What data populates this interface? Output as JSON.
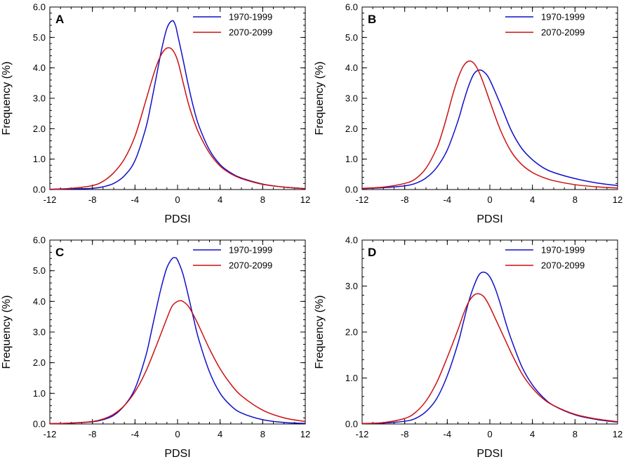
{
  "chart_data": [
    {
      "type": "line",
      "panel": "A",
      "xlabel": "PDSI",
      "ylabel": "Frequency (%)",
      "xlim": [
        -12,
        12
      ],
      "ylim": [
        0,
        6
      ],
      "xticks": [
        -12,
        -8,
        -4,
        0,
        4,
        8,
        12
      ],
      "yticks": [
        0,
        1,
        2,
        3,
        4,
        5,
        6
      ],
      "xtick_labels": [
        "-12",
        "-8",
        "-4",
        "0",
        "4",
        "8",
        "12"
      ],
      "ytick_labels": [
        "0.0",
        "1.0",
        "2.0",
        "3.0",
        "4.0",
        "5.0",
        "6.0"
      ],
      "legend_position": "top-right",
      "series": [
        {
          "name": "1970-1999",
          "color": "#1010c8",
          "x": [
            -12,
            -10,
            -8,
            -7,
            -6,
            -5,
            -4,
            -3,
            -2.5,
            -2,
            -1.5,
            -1,
            -0.5,
            -0.2,
            0,
            0.5,
            1,
            1.5,
            2,
            3,
            4,
            5,
            6,
            8,
            10,
            12
          ],
          "y": [
            0.0,
            0.02,
            0.04,
            0.09,
            0.2,
            0.45,
            0.95,
            2.0,
            2.8,
            3.7,
            4.6,
            5.3,
            5.55,
            5.4,
            5.1,
            4.3,
            3.45,
            2.7,
            2.1,
            1.3,
            0.82,
            0.55,
            0.38,
            0.18,
            0.08,
            0.03
          ]
        },
        {
          "name": "2070-2099",
          "color": "#cc1010",
          "x": [
            -12,
            -10,
            -8,
            -7,
            -6,
            -5,
            -4,
            -3,
            -2.5,
            -2,
            -1.5,
            -1,
            -0.5,
            0,
            0.5,
            1,
            1.5,
            2,
            3,
            4,
            5,
            6,
            8,
            10,
            12
          ],
          "y": [
            0.01,
            0.04,
            0.13,
            0.27,
            0.55,
            1.0,
            1.75,
            2.9,
            3.5,
            4.05,
            4.45,
            4.65,
            4.6,
            4.25,
            3.55,
            2.85,
            2.3,
            1.85,
            1.2,
            0.77,
            0.52,
            0.36,
            0.17,
            0.08,
            0.03
          ]
        }
      ]
    },
    {
      "type": "line",
      "panel": "B",
      "xlabel": "PDSI",
      "ylabel": "Frequency (%)",
      "xlim": [
        -12,
        12
      ],
      "ylim": [
        0,
        6
      ],
      "xticks": [
        -12,
        -8,
        -4,
        0,
        4,
        8,
        12
      ],
      "yticks": [
        0,
        1,
        2,
        3,
        4,
        5,
        6
      ],
      "xtick_labels": [
        "-12",
        "-8",
        "-4",
        "0",
        "4",
        "8",
        "12"
      ],
      "ytick_labels": [
        "0.0",
        "1.0",
        "2.0",
        "3.0",
        "4.0",
        "5.0",
        "6.0"
      ],
      "legend_position": "top-right",
      "series": [
        {
          "name": "1970-1999",
          "color": "#1010c8",
          "x": [
            -12,
            -10,
            -8,
            -7,
            -6,
            -5,
            -4,
            -3,
            -2.5,
            -2,
            -1.5,
            -1,
            -0.5,
            0,
            1,
            2,
            3,
            4,
            5,
            6,
            8,
            10,
            12
          ],
          "y": [
            0.03,
            0.06,
            0.12,
            0.2,
            0.38,
            0.72,
            1.3,
            2.25,
            2.85,
            3.4,
            3.8,
            3.93,
            3.85,
            3.6,
            2.8,
            1.95,
            1.35,
            0.98,
            0.72,
            0.56,
            0.36,
            0.22,
            0.13
          ]
        },
        {
          "name": "2070-2099",
          "color": "#cc1010",
          "x": [
            -12,
            -10,
            -8,
            -7,
            -6,
            -5,
            -4.5,
            -4,
            -3.5,
            -3,
            -2.5,
            -2,
            -1.5,
            -1,
            -0.5,
            0,
            1,
            2,
            3,
            4,
            5,
            6,
            8,
            10,
            12
          ],
          "y": [
            0.04,
            0.08,
            0.2,
            0.35,
            0.7,
            1.35,
            1.85,
            2.45,
            3.1,
            3.65,
            4.05,
            4.22,
            4.15,
            3.85,
            3.4,
            2.9,
            1.95,
            1.25,
            0.82,
            0.56,
            0.4,
            0.29,
            0.16,
            0.09,
            0.05
          ]
        }
      ]
    },
    {
      "type": "line",
      "panel": "C",
      "xlabel": "PDSI",
      "ylabel": "Frequency (%)",
      "xlim": [
        -12,
        12
      ],
      "ylim": [
        0,
        6
      ],
      "xticks": [
        -12,
        -8,
        -4,
        0,
        4,
        8,
        12
      ],
      "yticks": [
        0,
        1,
        2,
        3,
        4,
        5,
        6
      ],
      "xtick_labels": [
        "-12",
        "-8",
        "-4",
        "0",
        "4",
        "8",
        "12"
      ],
      "ytick_labels": [
        "0.0",
        "1.0",
        "2.0",
        "3.0",
        "4.0",
        "5.0",
        "6.0"
      ],
      "legend_position": "top-right",
      "series": [
        {
          "name": "1970-1999",
          "color": "#1010c8",
          "x": [
            -12,
            -10,
            -8,
            -7,
            -6,
            -5,
            -4,
            -3,
            -2.5,
            -2,
            -1.5,
            -1,
            -0.5,
            -0.2,
            0,
            0.5,
            1,
            1.5,
            2,
            3,
            4,
            5,
            6,
            8,
            10,
            12
          ],
          "y": [
            0.01,
            0.03,
            0.07,
            0.14,
            0.28,
            0.6,
            1.15,
            2.2,
            2.95,
            3.75,
            4.5,
            5.1,
            5.4,
            5.42,
            5.35,
            4.9,
            4.2,
            3.45,
            2.75,
            1.7,
            1.0,
            0.6,
            0.36,
            0.14,
            0.05,
            0.02
          ]
        },
        {
          "name": "2070-2099",
          "color": "#cc1010",
          "x": [
            -12,
            -10,
            -8,
            -7,
            -6,
            -5,
            -4,
            -3,
            -2,
            -1,
            -0.5,
            0,
            0.3,
            0.5,
            1,
            1.5,
            2,
            3,
            4,
            5,
            6,
            8,
            10,
            12
          ],
          "y": [
            0.01,
            0.03,
            0.08,
            0.16,
            0.32,
            0.6,
            1.05,
            1.7,
            2.55,
            3.45,
            3.85,
            4.0,
            4.02,
            4.0,
            3.85,
            3.55,
            3.2,
            2.45,
            1.8,
            1.3,
            0.92,
            0.45,
            0.2,
            0.08
          ]
        }
      ]
    },
    {
      "type": "line",
      "panel": "D",
      "xlabel": "PDSI",
      "ylabel": "Frequency (%)",
      "xlim": [
        -12,
        12
      ],
      "ylim": [
        0,
        4
      ],
      "xticks": [
        -12,
        -8,
        -4,
        0,
        4,
        8,
        12
      ],
      "yticks": [
        0,
        1,
        2,
        3,
        4
      ],
      "xtick_labels": [
        "-12",
        "-8",
        "-4",
        "0",
        "4",
        "8",
        "12"
      ],
      "ytick_labels": [
        "0.0",
        "1.0",
        "2.0",
        "3.0",
        "4.0"
      ],
      "legend_position": "top-right",
      "series": [
        {
          "name": "1970-1999",
          "color": "#1010c8",
          "x": [
            -12,
            -10,
            -8,
            -7,
            -6,
            -5,
            -4,
            -3,
            -2.5,
            -2,
            -1.5,
            -1,
            -0.5,
            0,
            0.5,
            1,
            1.5,
            2,
            3,
            4,
            5,
            6,
            8,
            10,
            12
          ],
          "y": [
            0.01,
            0.02,
            0.06,
            0.12,
            0.27,
            0.55,
            1.05,
            1.75,
            2.2,
            2.65,
            3.0,
            3.25,
            3.3,
            3.2,
            2.95,
            2.6,
            2.2,
            1.85,
            1.25,
            0.85,
            0.58,
            0.4,
            0.2,
            0.1,
            0.04
          ]
        },
        {
          "name": "2070-2099",
          "color": "#cc1010",
          "x": [
            -12,
            -10,
            -8,
            -7,
            -6,
            -5,
            -4,
            -3,
            -2.5,
            -2,
            -1.5,
            -1,
            -0.5,
            0,
            0.5,
            1,
            1.5,
            2,
            3,
            4,
            5,
            6,
            8,
            10,
            12
          ],
          "y": [
            0.01,
            0.03,
            0.12,
            0.25,
            0.5,
            0.9,
            1.45,
            2.05,
            2.38,
            2.65,
            2.8,
            2.83,
            2.75,
            2.55,
            2.3,
            2.05,
            1.8,
            1.55,
            1.1,
            0.78,
            0.55,
            0.4,
            0.21,
            0.11,
            0.05
          ]
        }
      ]
    }
  ]
}
